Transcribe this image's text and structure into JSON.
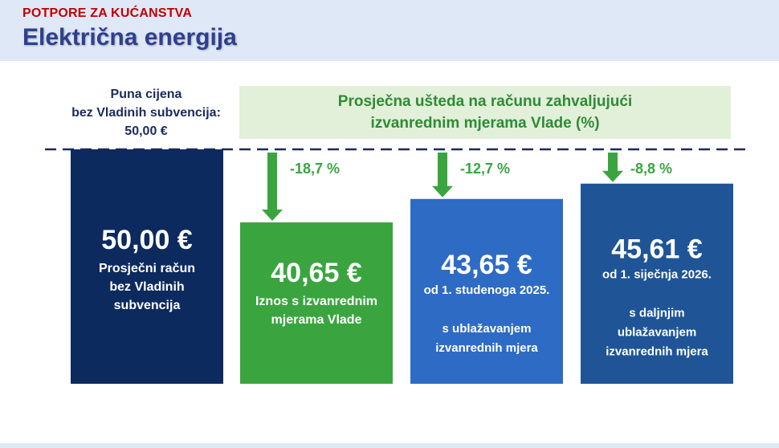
{
  "header": {
    "kicker": "POTPORE ZA KUĆANSTVA",
    "title": "Električna energija"
  },
  "full_price": {
    "line1": "Puna cijena",
    "line2": "bez Vladinih subvencija:",
    "line3": "50,00 €"
  },
  "saving_box": {
    "line1": "Prosječna ušteda na računu zahvaljujući",
    "line2": "izvanrednim mjerama Vlade (%)"
  },
  "colors": {
    "bar_full": "#0d2a5f",
    "bar_measure": "#3aa53f",
    "bar_nov": "#2e6bc4",
    "bar_jan": "#1f5597",
    "arrow": "#3aa53f",
    "pct_text": "#3aa53f",
    "dash_line": "#1b2a5e"
  },
  "chart_data": {
    "type": "bar",
    "ylim": [
      0,
      50
    ],
    "categories": [
      "Prosječni račun bez Vladinih subvencija",
      "Iznos s izvanrednim mjerama Vlade",
      "od 1. studenoga 2025.",
      "od 1. siječnja 2026."
    ],
    "values": [
      50.0,
      40.65,
      43.65,
      45.61
    ],
    "bars": [
      {
        "value": 50.0,
        "value_label": "50,00 €",
        "pct_label": "",
        "lines": [
          "Prosječni račun",
          "bez Vladinih",
          "subvencija"
        ],
        "color_key": "bar_full"
      },
      {
        "value": 40.65,
        "value_label": "40,65 €",
        "pct_label": "-18,7 %",
        "lines": [
          "Iznos s izvanrednim",
          "mjerama Vlade"
        ],
        "color_key": "bar_measure"
      },
      {
        "value": 43.65,
        "value_label": "43,65 €",
        "pct_label": "-12,7 %",
        "lines": [
          "od 1. studenoga 2025.",
          "",
          "s ublažavanjem",
          "izvanrednih mjera"
        ],
        "color_key": "bar_nov"
      },
      {
        "value": 45.61,
        "value_label": "45,61 €",
        "pct_label": "-8,8 %",
        "lines": [
          "od 1. siječnja 2026.",
          "",
          "s daljnjim",
          "ublažavanjem",
          "izvanrednih mjera"
        ],
        "color_key": "bar_jan"
      }
    ]
  }
}
